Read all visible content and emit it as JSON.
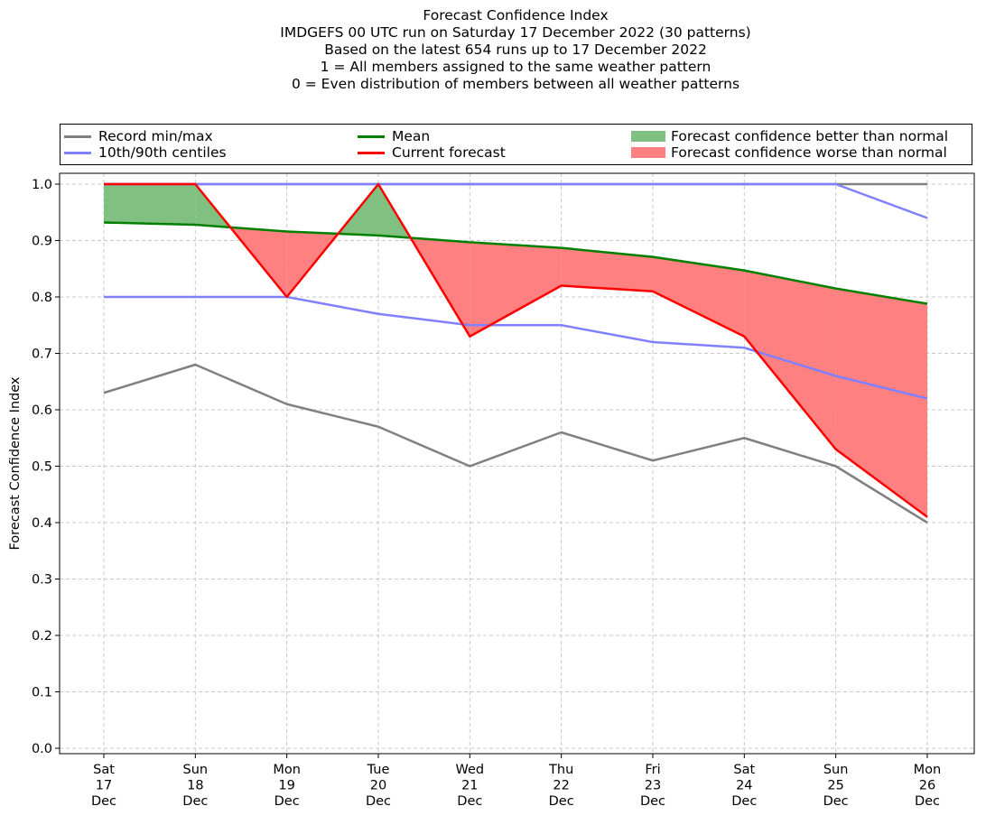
{
  "titles": [
    "Forecast Confidence Index",
    "IMDGEFS 00 UTC run on Saturday 17 December 2022 (30 patterns)",
    "Based on the latest 654 runs up to 17 December 2022",
    "1 = All members assigned to the same weather pattern",
    "0 = Even distribution of members between all weather patterns"
  ],
  "legend": {
    "record": "Record min/max",
    "centiles": "10th/90th centiles",
    "mean": "Mean",
    "current": "Current forecast",
    "better": "Forecast confidence better than normal",
    "worse": "Forecast confidence worse than normal"
  },
  "colors": {
    "record": "#808080",
    "centiles": "#8080ff",
    "mean": "#008000",
    "current": "#ff0000",
    "better": "#80c080",
    "worse": "#ff8080",
    "overlap": "#4040c0"
  },
  "chart_data": {
    "type": "line",
    "ylabel": "Forecast Confidence Index",
    "ylim": [
      0.0,
      1.0
    ],
    "yticks": [
      "0.0",
      "0.1",
      "0.2",
      "0.3",
      "0.4",
      "0.5",
      "0.6",
      "0.7",
      "0.8",
      "0.9",
      "1.0"
    ],
    "grid": true,
    "legend_position": "top",
    "categories": [
      [
        "Sat",
        "17",
        "Dec"
      ],
      [
        "Sun",
        "18",
        "Dec"
      ],
      [
        "Mon",
        "19",
        "Dec"
      ],
      [
        "Tue",
        "20",
        "Dec"
      ],
      [
        "Wed",
        "21",
        "Dec"
      ],
      [
        "Thu",
        "22",
        "Dec"
      ],
      [
        "Fri",
        "23",
        "Dec"
      ],
      [
        "Sat",
        "24",
        "Dec"
      ],
      [
        "Sun",
        "25",
        "Dec"
      ],
      [
        "Mon",
        "26",
        "Dec"
      ]
    ],
    "series": [
      {
        "name": "Record min/max",
        "key": "record_max",
        "values": [
          1.0,
          1.0,
          1.0,
          1.0,
          1.0,
          1.0,
          1.0,
          1.0,
          1.0,
          1.0
        ]
      },
      {
        "name": "Record min/max",
        "key": "record_min",
        "values": [
          0.63,
          0.68,
          0.61,
          0.57,
          0.5,
          0.56,
          0.51,
          0.55,
          0.5,
          0.4
        ]
      },
      {
        "name": "10th/90th centiles",
        "key": "p90",
        "values": [
          1.0,
          1.0,
          1.0,
          1.0,
          1.0,
          1.0,
          1.0,
          1.0,
          1.0,
          0.94
        ]
      },
      {
        "name": "10th/90th centiles",
        "key": "p10",
        "values": [
          0.8,
          0.8,
          0.8,
          0.77,
          0.75,
          0.75,
          0.72,
          0.71,
          0.66,
          0.62
        ]
      },
      {
        "name": "Mean",
        "key": "mean",
        "values": [
          0.932,
          0.928,
          0.916,
          0.909,
          0.897,
          0.887,
          0.871,
          0.847,
          0.815,
          0.788
        ]
      },
      {
        "name": "Current forecast",
        "key": "current",
        "values": [
          1.0,
          1.0,
          0.8,
          1.0,
          0.73,
          0.82,
          0.81,
          0.73,
          0.53,
          0.41
        ]
      }
    ]
  }
}
